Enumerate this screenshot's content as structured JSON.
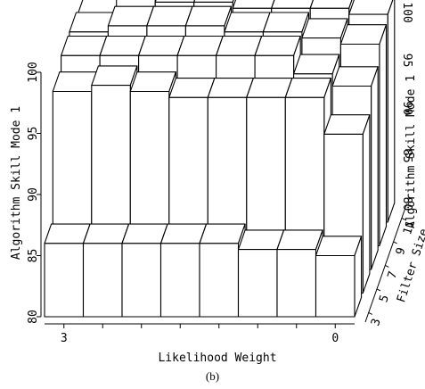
{
  "chart_data": {
    "type": "bar3d",
    "title": "",
    "caption": "(b)",
    "x_axis": {
      "label": "Likelihood Weight",
      "tick_labels": [
        {
          "value": 3,
          "label": "3"
        },
        {
          "value": 0,
          "label": "0"
        }
      ],
      "categories": [
        3,
        2.57,
        2.14,
        1.71,
        1.29,
        0.86,
        0.43,
        0
      ]
    },
    "depth_axis": {
      "label": "Filter Size",
      "tick_labels": [
        "3",
        "5",
        "7",
        "9",
        "11"
      ],
      "categories": [
        3,
        5,
        7,
        9,
        11
      ]
    },
    "z_axis": {
      "label": "Algorithm Skill  Mode 1",
      "range": [
        80,
        100
      ],
      "left_ticks": [
        "80",
        "85",
        "90",
        "95",
        "100"
      ],
      "right_ticks": [
        "80",
        "85",
        "90",
        "95",
        "100"
      ]
    },
    "values": [
      [
        86,
        86,
        86,
        86,
        86,
        85.5,
        85.5,
        85
      ],
      [
        96.5,
        97,
        96.5,
        96,
        96,
        96,
        96,
        93
      ],
      [
        97.5,
        97.5,
        97.5,
        97.5,
        97.5,
        97.5,
        96,
        95
      ],
      [
        97.5,
        98,
        98,
        98,
        97.5,
        97.5,
        97,
        96.5
      ],
      [
        97,
        98.5,
        98,
        98,
        97.5,
        97.5,
        97.5,
        97
      ]
    ]
  }
}
